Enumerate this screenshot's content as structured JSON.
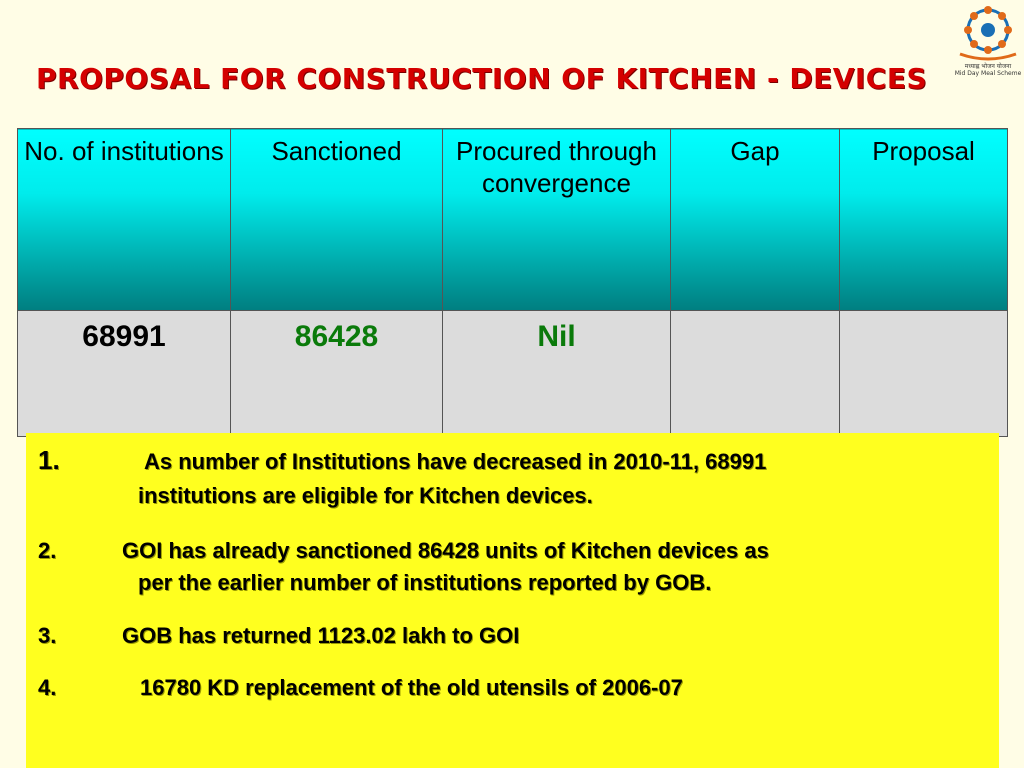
{
  "title": "Proposal for Construction of Kitchen - Devices",
  "logo": {
    "icon": "mid-day-meal-logo-icon",
    "text_line1": "मध्याह्न भोजन योजना",
    "text_line2": "Mid Day Meal Scheme"
  },
  "table": {
    "headers": [
      "No. of institutions",
      "Sanctioned",
      "Procured through convergence",
      "Gap",
      "Proposal"
    ],
    "row": [
      "68991",
      "86428",
      "Nil",
      "",
      ""
    ]
  },
  "notes": [
    {
      "num": "1.",
      "line1": "As number of Institutions have decreased in 2010-11, 68991",
      "line2": "institutions  are  eligible for Kitchen devices."
    },
    {
      "num": "2.",
      "line1": "GOI has already sanctioned 86428 units of Kitchen  devices as",
      "line2": "per the  earlier number of institutions reported by GOB."
    },
    {
      "num": "3.",
      "line1": "GOB has returned 1123.02 lakh to GOI",
      "line2": ""
    },
    {
      "num": "4.",
      "line1": "16780 KD replacement of the old utensils of 2006-07",
      "line2": ""
    }
  ],
  "colors": {
    "title": "#d40000",
    "header_top": "#00ffff",
    "header_bottom": "#007e80",
    "notes_bg": "#ffff1f",
    "value_green": "#0a7a0a"
  }
}
